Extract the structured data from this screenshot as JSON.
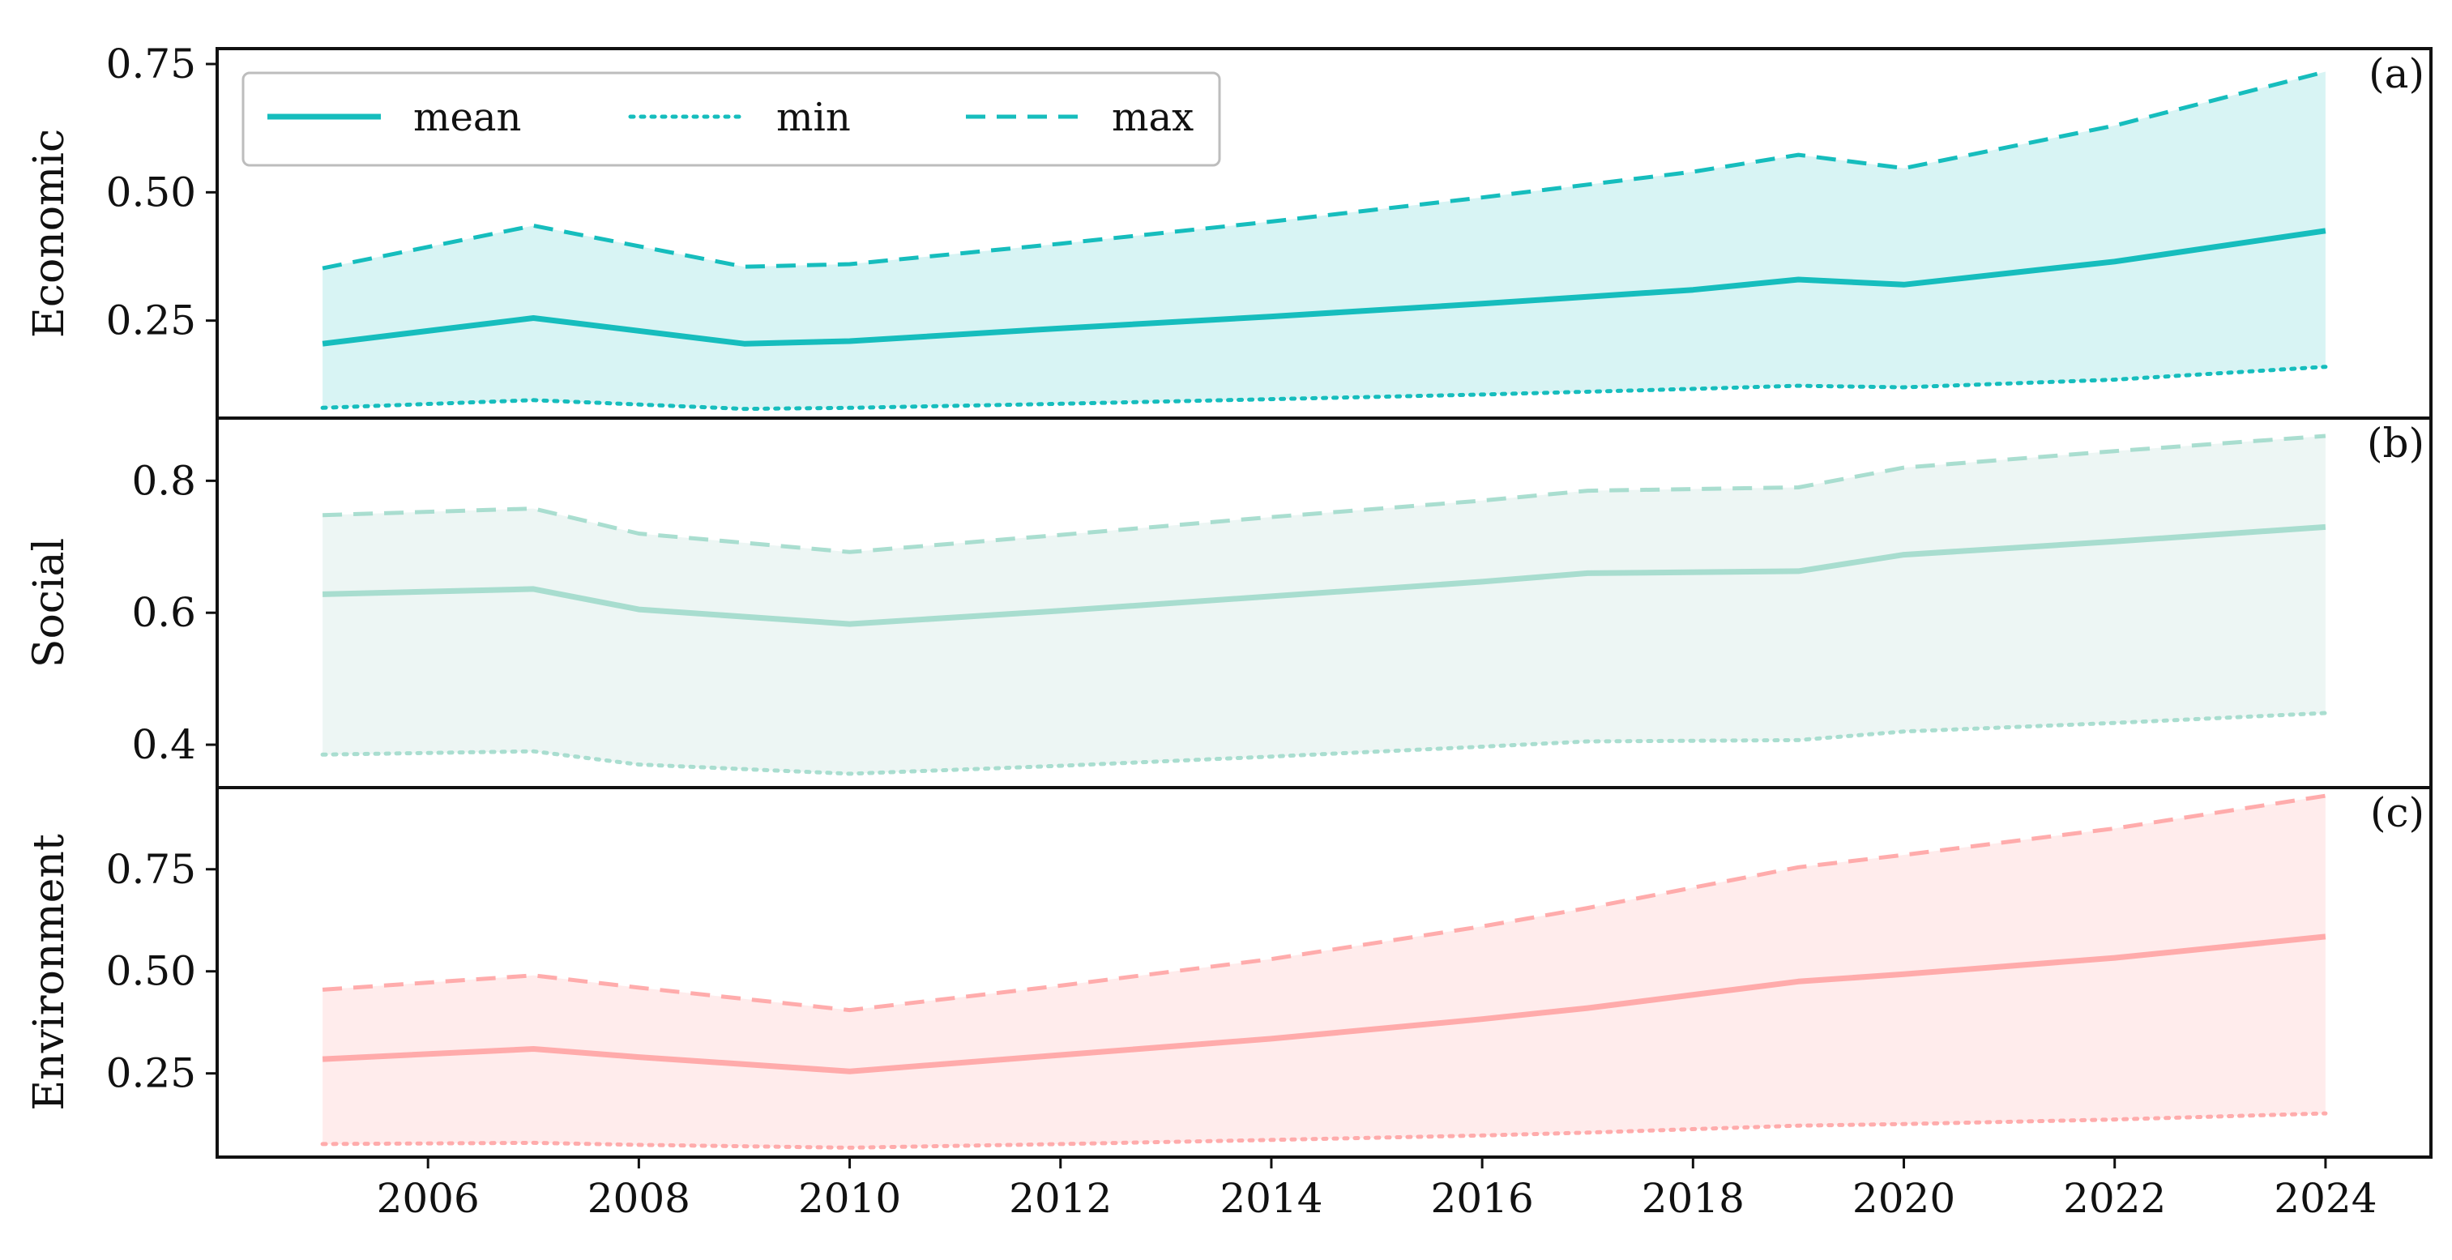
{
  "chart_data": {
    "type": "line",
    "x_ticks": [
      2006,
      2008,
      2010,
      2012,
      2014,
      2016,
      2018,
      2020,
      2022,
      2024
    ],
    "xlim": [
      2004,
      2025
    ],
    "grid": false,
    "shared_x": true,
    "legend": {
      "placement": "top-left of panel (a)",
      "entries": [
        {
          "label": "mean",
          "style": "solid"
        },
        {
          "label": "min",
          "style": "dotted"
        },
        {
          "label": "max",
          "style": "dashed"
        }
      ]
    },
    "panels": [
      {
        "id": "a",
        "letter": "(a)",
        "ylabel": "Economic",
        "color": "#16BDBD",
        "fill_color": "#16BDBD",
        "fill_opacity": 0.17,
        "line_opacity": 1.0,
        "ylim": [
          0.06,
          0.78
        ],
        "y_ticks": [
          {
            "value": 0.25,
            "label": "0.25"
          },
          {
            "value": 0.5,
            "label": "0.50"
          },
          {
            "value": 0.75,
            "label": "0.75"
          }
        ],
        "x": [
          2005,
          2007,
          2009,
          2010,
          2012,
          2014,
          2016,
          2018,
          2019,
          2020,
          2022,
          2024
        ],
        "series": [
          {
            "name": "mean",
            "values": [
              0.205,
              0.255,
              0.205,
              0.21,
              0.235,
              0.258,
              0.283,
              0.31,
              0.33,
              0.32,
              0.365,
              0.425
            ]
          },
          {
            "name": "min",
            "values": [
              0.08,
              0.095,
              0.078,
              0.08,
              0.088,
              0.097,
              0.106,
              0.117,
              0.123,
              0.12,
              0.135,
              0.16
            ]
          },
          {
            "name": "max",
            "values": [
              0.352,
              0.435,
              0.355,
              0.36,
              0.4,
              0.443,
              0.49,
              0.54,
              0.573,
              0.547,
              0.63,
              0.735
            ]
          }
        ]
      },
      {
        "id": "b",
        "letter": "(b)",
        "ylabel": "Social",
        "color": "#9BD8C8",
        "fill_color": "#C6E4DE",
        "fill_opacity": 0.32,
        "line_opacity": 0.85,
        "ylim": [
          0.335,
          0.895
        ],
        "y_ticks": [
          {
            "value": 0.4,
            "label": "0.4"
          },
          {
            "value": 0.6,
            "label": "0.6"
          },
          {
            "value": 0.8,
            "label": "0.8"
          }
        ],
        "x": [
          2005,
          2007,
          2008,
          2010,
          2012,
          2014,
          2016,
          2017,
          2019,
          2020,
          2022,
          2024
        ],
        "series": [
          {
            "name": "mean",
            "values": [
              0.628,
              0.636,
              0.605,
              0.583,
              0.603,
              0.625,
              0.647,
              0.66,
              0.663,
              0.688,
              0.708,
              0.73
            ]
          },
          {
            "name": "min",
            "values": [
              0.385,
              0.39,
              0.37,
              0.356,
              0.368,
              0.382,
              0.397,
              0.405,
              0.407,
              0.42,
              0.433,
              0.448
            ]
          },
          {
            "name": "max",
            "values": [
              0.748,
              0.758,
              0.72,
              0.692,
              0.718,
              0.745,
              0.77,
              0.785,
              0.79,
              0.82,
              0.845,
              0.868
            ]
          }
        ]
      },
      {
        "id": "c",
        "letter": "(c)",
        "ylabel": "Environment",
        "color": "#FFA8A8",
        "fill_color": "#FFB3B3",
        "fill_opacity": 0.25,
        "line_opacity": 0.95,
        "ylim": [
          0.045,
          0.95
        ],
        "y_ticks": [
          {
            "value": 0.25,
            "label": "0.25"
          },
          {
            "value": 0.5,
            "label": "0.50"
          },
          {
            "value": 0.75,
            "label": "0.75"
          }
        ],
        "x": [
          2005,
          2007,
          2008,
          2010,
          2012,
          2014,
          2016,
          2017,
          2019,
          2020,
          2022,
          2024
        ],
        "series": [
          {
            "name": "mean",
            "values": [
              0.285,
              0.31,
              0.29,
              0.255,
              0.295,
              0.335,
              0.383,
              0.41,
              0.475,
              0.493,
              0.533,
              0.585
            ]
          },
          {
            "name": "min",
            "values": [
              0.077,
              0.08,
              0.075,
              0.068,
              0.077,
              0.087,
              0.098,
              0.105,
              0.122,
              0.126,
              0.137,
              0.152
            ]
          },
          {
            "name": "max",
            "values": [
              0.455,
              0.49,
              0.46,
              0.405,
              0.465,
              0.53,
              0.61,
              0.655,
              0.755,
              0.785,
              0.85,
              0.93
            ]
          }
        ]
      }
    ]
  }
}
